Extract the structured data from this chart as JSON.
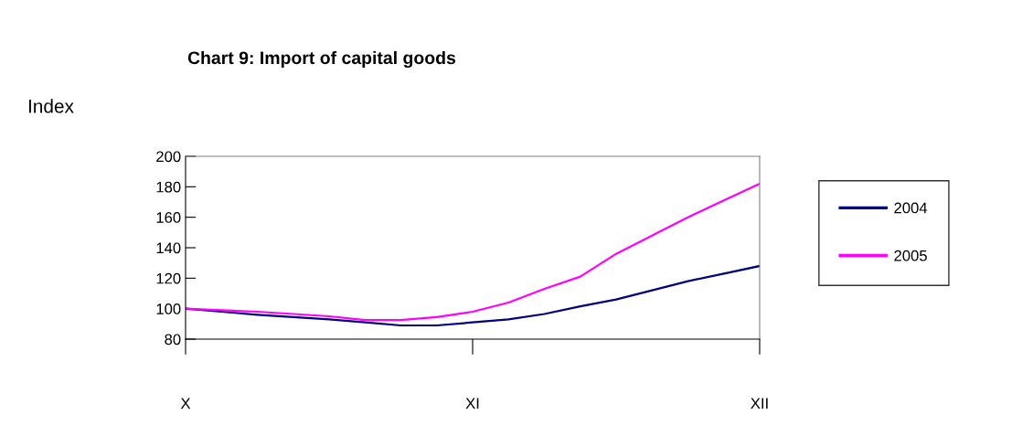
{
  "chart_data": {
    "type": "line",
    "title": "Chart 9: Import of capital goods",
    "ylabel": "Index",
    "categories": [
      "X",
      null,
      null,
      null,
      null,
      null,
      null,
      null,
      "XI",
      null,
      null,
      null,
      null,
      null,
      null,
      null,
      "XII"
    ],
    "ylim": [
      80,
      200
    ],
    "yticks": [
      80,
      100,
      120,
      140,
      160,
      180,
      200
    ],
    "grid": false,
    "legend": "right",
    "marker": "none",
    "line_style": "solid",
    "series": [
      {
        "name": "2004",
        "color": "#000080",
        "values": [
          100,
          98,
          96,
          94.5,
          93,
          91,
          89,
          89,
          91,
          93,
          96.5,
          101.5,
          106,
          112,
          118,
          123,
          128
        ]
      },
      {
        "name": "2005",
        "color": "#ff00ff",
        "values": [
          100,
          99,
          98,
          96.5,
          95,
          92.5,
          92.5,
          94.5,
          98,
          104,
          113,
          121,
          136,
          148,
          160,
          171,
          182
        ]
      }
    ]
  }
}
